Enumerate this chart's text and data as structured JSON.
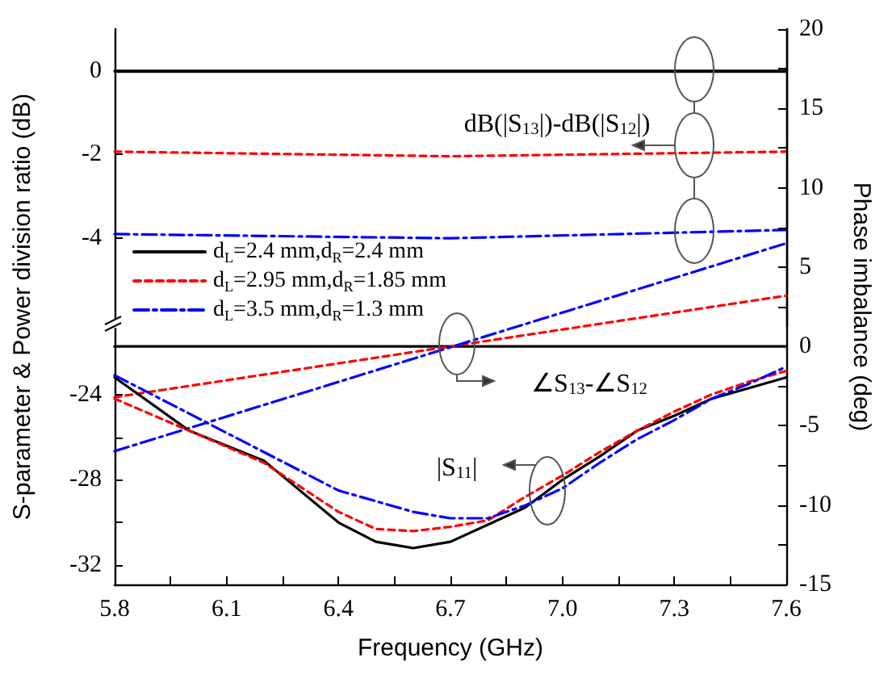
{
  "chart_data": [
    {
      "type": "line",
      "ylim": [
        -6.1,
        1
      ],
      "yticks": [
        0,
        -2,
        -4
      ],
      "xlim": [
        5.8,
        7.6
      ],
      "tick_labels": "y",
      "grid": false,
      "marker": "none",
      "legend": "bottom left",
      "annotations": [
        "dB(|S$_{13}$|)-dB(|S$_{12}$|)"
      ],
      "series": [
        {
          "name": "d$_{L}$=2.4 mm,d$_{R}$=2.4 mm",
          "color": "#000000",
          "line_style": "solid",
          "x": [
            5.8,
            7.6
          ],
          "values": [
            0,
            0
          ]
        },
        {
          "name": "d$_{L}$=2.95 mm,d$_{R}$=1.85 mm",
          "color": "#ff0000",
          "line_style": "dashed",
          "x": [
            5.8,
            6.7,
            7.6
          ],
          "values": [
            -1.93,
            -2.04,
            -1.93
          ]
        },
        {
          "name": "d$_{L}$=3.5 mm,d$_{R}$=1.3 mm",
          "color": "#0000ff",
          "line_style": "dashdot",
          "x": [
            5.8,
            6.7,
            7.6
          ],
          "values": [
            -3.9,
            -4.0,
            -3.8
          ]
        }
      ]
    },
    {
      "type": "line",
      "xlabel": "Frequency (GHz)",
      "ylabel": "S-parameter & Power division ratio (dB)",
      "y2label": "Phase imbalance (deg)",
      "xlim": [
        5.8,
        7.6
      ],
      "xticks": [
        5.8,
        {
          "value": 5.95,
          "label": null
        },
        6.1,
        {
          "value": 6.25,
          "label": null
        },
        6.4,
        {
          "value": 6.55,
          "label": null
        },
        6.7,
        {
          "value": 6.85,
          "label": null
        },
        "7.0",
        {
          "value": 7.15,
          "label": null
        },
        7.3,
        {
          "value": 7.45,
          "label": null
        },
        7.6
      ],
      "ylim": [
        -32.9,
        -20.8
      ],
      "yticks": [
        -24,
        {
          "value": -26,
          "label": null
        },
        -28,
        {
          "value": -30,
          "label": null
        },
        -32
      ],
      "y2lim": [
        -15,
        20
      ],
      "y2ticks": [
        -15,
        {
          "value": -12.5,
          "label": null
        },
        -10,
        {
          "value": -7.5,
          "label": null
        },
        -5,
        {
          "value": -2.5,
          "label": null
        },
        0,
        {
          "value": 2.5,
          "label": null
        },
        5,
        {
          "value": 7.5,
          "label": null
        },
        10,
        {
          "value": 12.5,
          "label": null
        },
        15,
        {
          "value": 17.5,
          "label": null
        },
        20
      ],
      "grid": false,
      "marker": "none",
      "annotations": [
        "∠S$_{13}$-∠S$_{12}$",
        "|S$_{11}$|"
      ],
      "series": [
        {
          "color": "#000000",
          "line_style": "solid",
          "axis": "y2",
          "x": [
            5.8,
            7.6
          ],
          "values": [
            0,
            0
          ]
        },
        {
          "color": "#ff0000",
          "line_style": "dashed",
          "axis": "y2",
          "x": [
            5.8,
            7.6
          ],
          "values": [
            -3.2,
            3.2
          ]
        },
        {
          "color": "#0000ff",
          "line_style": "dashdot",
          "axis": "y2",
          "x": [
            5.8,
            7.6
          ],
          "values": [
            -6.6,
            6.5
          ]
        },
        {
          "color": "#000000",
          "line_style": "solid",
          "x": [
            5.8,
            6.0,
            6.2,
            6.4,
            6.5,
            6.6,
            6.7,
            6.8,
            6.9,
            7.0,
            7.1,
            7.2,
            7.3,
            7.4,
            7.5,
            7.6
          ],
          "values": [
            -23.2,
            -25.7,
            -27.1,
            -30.0,
            -30.9,
            -31.2,
            -30.9,
            -30.1,
            -29.3,
            -28.0,
            -26.9,
            -25.7,
            -25.0,
            -24.2,
            -23.7,
            -23.2
          ]
        },
        {
          "color": "#ff0000",
          "line_style": "dashed",
          "x": [
            5.8,
            6.0,
            6.2,
            6.4,
            6.5,
            6.6,
            6.7,
            6.8,
            6.9,
            7.0,
            7.1,
            7.2,
            7.3,
            7.4,
            7.5,
            7.6
          ],
          "values": [
            -24.2,
            -25.7,
            -27.2,
            -29.5,
            -30.3,
            -30.4,
            -30.2,
            -29.9,
            -28.8,
            -27.8,
            -26.7,
            -25.7,
            -24.8,
            -24.0,
            -23.4,
            -22.9
          ]
        },
        {
          "color": "#0000ff",
          "line_style": "dashdot",
          "x": [
            5.8,
            6.0,
            6.2,
            6.4,
            6.6,
            6.7,
            6.8,
            6.9,
            7.0,
            7.1,
            7.2,
            7.3,
            7.4,
            7.5,
            7.6
          ],
          "values": [
            -23.1,
            -24.9,
            -26.7,
            -28.5,
            -29.5,
            -29.8,
            -29.8,
            -29.2,
            -28.4,
            -27.2,
            -26.1,
            -25.2,
            -24.2,
            -23.5,
            -22.7
          ]
        }
      ]
    }
  ]
}
